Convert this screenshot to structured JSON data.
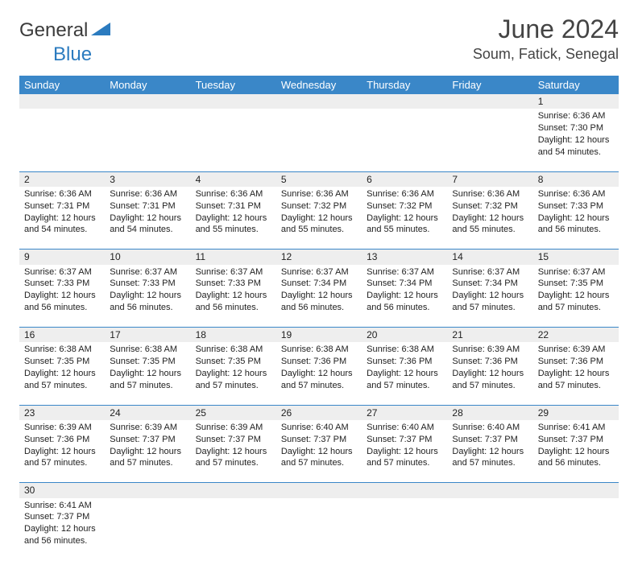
{
  "logo": {
    "word1": "General",
    "word2": "Blue"
  },
  "title": "June 2024",
  "location": "Soum, Fatick, Senegal",
  "colors": {
    "header_bg": "#3a87c8",
    "header_text": "#ffffff",
    "daynum_bg": "#eeeeee",
    "cell_border": "#3a87c8",
    "body_text": "#222222",
    "title_text": "#444444",
    "logo_blue": "#2b7bbf",
    "logo_gray": "#3b3b3b"
  },
  "weekdays": [
    "Sunday",
    "Monday",
    "Tuesday",
    "Wednesday",
    "Thursday",
    "Friday",
    "Saturday"
  ],
  "weeks": [
    [
      null,
      null,
      null,
      null,
      null,
      null,
      {
        "n": "1",
        "sunrise": "6:36 AM",
        "sunset": "7:30 PM",
        "daylight": "12 hours and 54 minutes."
      }
    ],
    [
      {
        "n": "2",
        "sunrise": "6:36 AM",
        "sunset": "7:31 PM",
        "daylight": "12 hours and 54 minutes."
      },
      {
        "n": "3",
        "sunrise": "6:36 AM",
        "sunset": "7:31 PM",
        "daylight": "12 hours and 54 minutes."
      },
      {
        "n": "4",
        "sunrise": "6:36 AM",
        "sunset": "7:31 PM",
        "daylight": "12 hours and 55 minutes."
      },
      {
        "n": "5",
        "sunrise": "6:36 AM",
        "sunset": "7:32 PM",
        "daylight": "12 hours and 55 minutes."
      },
      {
        "n": "6",
        "sunrise": "6:36 AM",
        "sunset": "7:32 PM",
        "daylight": "12 hours and 55 minutes."
      },
      {
        "n": "7",
        "sunrise": "6:36 AM",
        "sunset": "7:32 PM",
        "daylight": "12 hours and 55 minutes."
      },
      {
        "n": "8",
        "sunrise": "6:36 AM",
        "sunset": "7:33 PM",
        "daylight": "12 hours and 56 minutes."
      }
    ],
    [
      {
        "n": "9",
        "sunrise": "6:37 AM",
        "sunset": "7:33 PM",
        "daylight": "12 hours and 56 minutes."
      },
      {
        "n": "10",
        "sunrise": "6:37 AM",
        "sunset": "7:33 PM",
        "daylight": "12 hours and 56 minutes."
      },
      {
        "n": "11",
        "sunrise": "6:37 AM",
        "sunset": "7:33 PM",
        "daylight": "12 hours and 56 minutes."
      },
      {
        "n": "12",
        "sunrise": "6:37 AM",
        "sunset": "7:34 PM",
        "daylight": "12 hours and 56 minutes."
      },
      {
        "n": "13",
        "sunrise": "6:37 AM",
        "sunset": "7:34 PM",
        "daylight": "12 hours and 56 minutes."
      },
      {
        "n": "14",
        "sunrise": "6:37 AM",
        "sunset": "7:34 PM",
        "daylight": "12 hours and 57 minutes."
      },
      {
        "n": "15",
        "sunrise": "6:37 AM",
        "sunset": "7:35 PM",
        "daylight": "12 hours and 57 minutes."
      }
    ],
    [
      {
        "n": "16",
        "sunrise": "6:38 AM",
        "sunset": "7:35 PM",
        "daylight": "12 hours and 57 minutes."
      },
      {
        "n": "17",
        "sunrise": "6:38 AM",
        "sunset": "7:35 PM",
        "daylight": "12 hours and 57 minutes."
      },
      {
        "n": "18",
        "sunrise": "6:38 AM",
        "sunset": "7:35 PM",
        "daylight": "12 hours and 57 minutes."
      },
      {
        "n": "19",
        "sunrise": "6:38 AM",
        "sunset": "7:36 PM",
        "daylight": "12 hours and 57 minutes."
      },
      {
        "n": "20",
        "sunrise": "6:38 AM",
        "sunset": "7:36 PM",
        "daylight": "12 hours and 57 minutes."
      },
      {
        "n": "21",
        "sunrise": "6:39 AM",
        "sunset": "7:36 PM",
        "daylight": "12 hours and 57 minutes."
      },
      {
        "n": "22",
        "sunrise": "6:39 AM",
        "sunset": "7:36 PM",
        "daylight": "12 hours and 57 minutes."
      }
    ],
    [
      {
        "n": "23",
        "sunrise": "6:39 AM",
        "sunset": "7:36 PM",
        "daylight": "12 hours and 57 minutes."
      },
      {
        "n": "24",
        "sunrise": "6:39 AM",
        "sunset": "7:37 PM",
        "daylight": "12 hours and 57 minutes."
      },
      {
        "n": "25",
        "sunrise": "6:39 AM",
        "sunset": "7:37 PM",
        "daylight": "12 hours and 57 minutes."
      },
      {
        "n": "26",
        "sunrise": "6:40 AM",
        "sunset": "7:37 PM",
        "daylight": "12 hours and 57 minutes."
      },
      {
        "n": "27",
        "sunrise": "6:40 AM",
        "sunset": "7:37 PM",
        "daylight": "12 hours and 57 minutes."
      },
      {
        "n": "28",
        "sunrise": "6:40 AM",
        "sunset": "7:37 PM",
        "daylight": "12 hours and 57 minutes."
      },
      {
        "n": "29",
        "sunrise": "6:41 AM",
        "sunset": "7:37 PM",
        "daylight": "12 hours and 56 minutes."
      }
    ],
    [
      {
        "n": "30",
        "sunrise": "6:41 AM",
        "sunset": "7:37 PM",
        "daylight": "12 hours and 56 minutes."
      },
      null,
      null,
      null,
      null,
      null,
      null
    ]
  ],
  "labels": {
    "sunrise": "Sunrise:",
    "sunset": "Sunset:",
    "daylight": "Daylight:"
  }
}
